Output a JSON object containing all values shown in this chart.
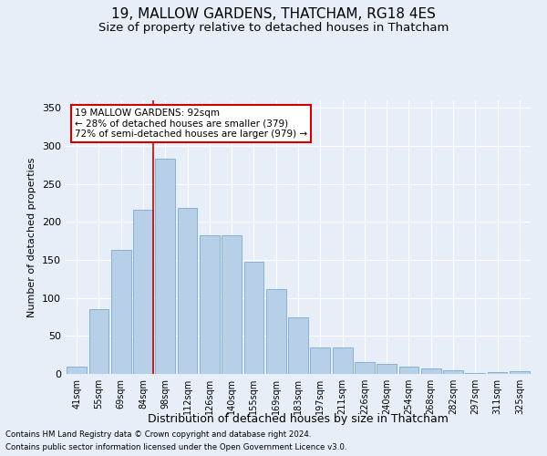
{
  "title1": "19, MALLOW GARDENS, THATCHAM, RG18 4ES",
  "title2": "Size of property relative to detached houses in Thatcham",
  "xlabel": "Distribution of detached houses by size in Thatcham",
  "ylabel": "Number of detached properties",
  "categories": [
    "41sqm",
    "55sqm",
    "69sqm",
    "84sqm",
    "98sqm",
    "112sqm",
    "126sqm",
    "140sqm",
    "155sqm",
    "169sqm",
    "183sqm",
    "197sqm",
    "211sqm",
    "226sqm",
    "240sqm",
    "254sqm",
    "268sqm",
    "282sqm",
    "297sqm",
    "311sqm",
    "325sqm"
  ],
  "values": [
    10,
    85,
    163,
    216,
    283,
    218,
    183,
    183,
    148,
    112,
    75,
    35,
    35,
    16,
    13,
    10,
    7,
    5,
    1,
    2,
    4
  ],
  "bar_color": "#b8cfe8",
  "bar_edge_color": "#7aaad0",
  "vline_bin_index": 3,
  "vline_color": "#cc0000",
  "annotation_text": "19 MALLOW GARDENS: 92sqm\n← 28% of detached houses are smaller (379)\n72% of semi-detached houses are larger (979) →",
  "annotation_box_color": "#ffffff",
  "annotation_box_edge": "#cc0000",
  "footnote1": "Contains HM Land Registry data © Crown copyright and database right 2024.",
  "footnote2": "Contains public sector information licensed under the Open Government Licence v3.0.",
  "ylim": [
    0,
    360
  ],
  "yticks": [
    0,
    50,
    100,
    150,
    200,
    250,
    300,
    350
  ],
  "bg_color": "#e8eef8",
  "grid_color": "#ffffff",
  "title_fontsize": 11,
  "subtitle_fontsize": 9.5
}
